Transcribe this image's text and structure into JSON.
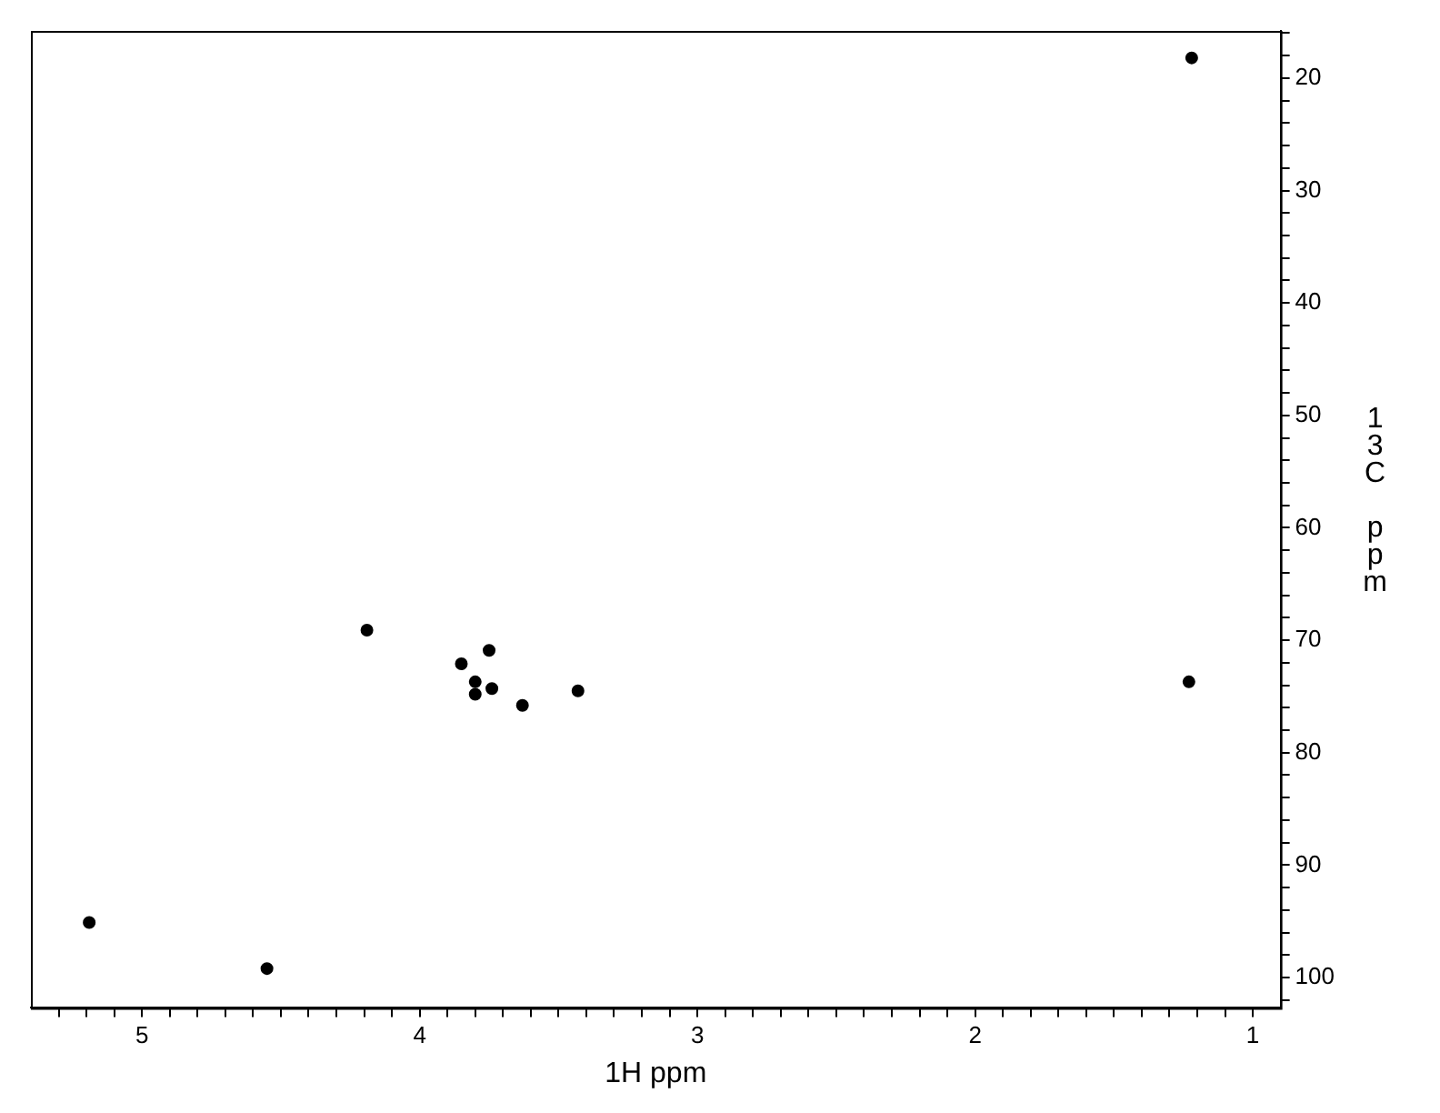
{
  "chart_data": {
    "type": "scatter",
    "xlabel": "1H ppm",
    "ylabel": "13C ppm",
    "series": [
      {
        "color": "#000000",
        "x": [
          1.22,
          5.19,
          4.55,
          4.19,
          3.75,
          3.85,
          3.8,
          3.74,
          3.8,
          3.63,
          3.43,
          1.23
        ],
        "values": [
          18.2,
          95.1,
          99.2,
          69.1,
          70.9,
          72.1,
          73.7,
          74.3,
          74.8,
          75.8,
          74.5,
          73.7
        ]
      }
    ],
    "marker": "circle",
    "legend": false,
    "xlim": [
      5.4,
      0.9
    ],
    "xticks": [
      {
        "value": 5.3,
        "label": null
      },
      {
        "value": 5.2,
        "label": null
      },
      {
        "value": 5.1,
        "label": null
      },
      5,
      {
        "value": 4.9,
        "label": null
      },
      {
        "value": 4.8,
        "label": null
      },
      {
        "value": 4.7,
        "label": null
      },
      {
        "value": 4.6,
        "label": null
      },
      {
        "value": 4.5,
        "label": null
      },
      {
        "value": 4.4,
        "label": null
      },
      {
        "value": 4.3,
        "label": null
      },
      {
        "value": 4.2,
        "label": null
      },
      {
        "value": 4.1,
        "label": null
      },
      4,
      {
        "value": 3.9,
        "label": null
      },
      {
        "value": 3.8,
        "label": null
      },
      {
        "value": 3.7,
        "label": null
      },
      {
        "value": 3.6,
        "label": null
      },
      {
        "value": 3.5,
        "label": null
      },
      {
        "value": 3.4,
        "label": null
      },
      {
        "value": 3.3,
        "label": null
      },
      {
        "value": 3.2,
        "label": null
      },
      {
        "value": 3.1,
        "label": null
      },
      3,
      {
        "value": 2.9,
        "label": null
      },
      {
        "value": 2.8,
        "label": null
      },
      {
        "value": 2.7,
        "label": null
      },
      {
        "value": 2.6,
        "label": null
      },
      {
        "value": 2.5,
        "label": null
      },
      {
        "value": 2.4,
        "label": null
      },
      {
        "value": 2.3,
        "label": null
      },
      {
        "value": 2.2,
        "label": null
      },
      {
        "value": 2.1,
        "label": null
      },
      2,
      {
        "value": 1.9,
        "label": null
      },
      {
        "value": 1.8,
        "label": null
      },
      {
        "value": 1.7,
        "label": null
      },
      {
        "value": 1.6,
        "label": null
      },
      {
        "value": 1.5,
        "label": null
      },
      {
        "value": 1.4,
        "label": null
      },
      {
        "value": 1.3,
        "label": null
      },
      {
        "value": 1.2,
        "label": null
      },
      {
        "value": 1.1,
        "label": null
      },
      1
    ],
    "ylim": [
      102.7,
      15.8
    ],
    "yticks": [
      {
        "value": 16,
        "label": null
      },
      {
        "value": 18,
        "label": null
      },
      20,
      {
        "value": 22,
        "label": null
      },
      {
        "value": 24,
        "label": null
      },
      {
        "value": 26,
        "label": null
      },
      {
        "value": 28,
        "label": null
      },
      30,
      {
        "value": 32,
        "label": null
      },
      {
        "value": 34,
        "label": null
      },
      {
        "value": 36,
        "label": null
      },
      {
        "value": 38,
        "label": null
      },
      40,
      {
        "value": 42,
        "label": null
      },
      {
        "value": 44,
        "label": null
      },
      {
        "value": 46,
        "label": null
      },
      {
        "value": 48,
        "label": null
      },
      50,
      {
        "value": 52,
        "label": null
      },
      {
        "value": 54,
        "label": null
      },
      {
        "value": 56,
        "label": null
      },
      {
        "value": 58,
        "label": null
      },
      60,
      {
        "value": 62,
        "label": null
      },
      {
        "value": 64,
        "label": null
      },
      {
        "value": 66,
        "label": null
      },
      {
        "value": 68,
        "label": null
      },
      70,
      {
        "value": 72,
        "label": null
      },
      {
        "value": 74,
        "label": null
      },
      {
        "value": 76,
        "label": null
      },
      {
        "value": 78,
        "label": null
      },
      80,
      {
        "value": 82,
        "label": null
      },
      {
        "value": 84,
        "label": null
      },
      {
        "value": 86,
        "label": null
      },
      {
        "value": 88,
        "label": null
      },
      90,
      {
        "value": 92,
        "label": null
      },
      {
        "value": 94,
        "label": null
      },
      {
        "value": 96,
        "label": null
      },
      {
        "value": 98,
        "label": null
      },
      100,
      {
        "value": 102,
        "label": null
      }
    ]
  }
}
